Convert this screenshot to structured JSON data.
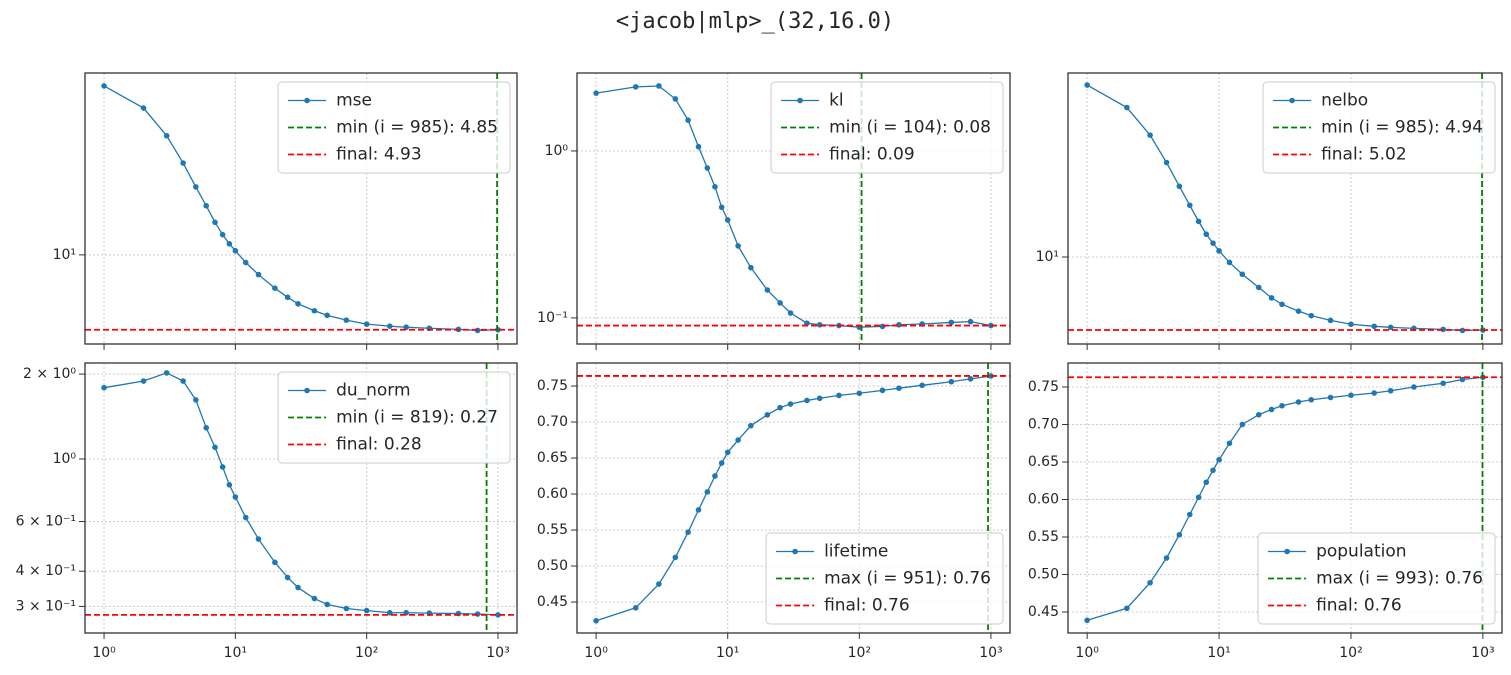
{
  "title": "<jacob|mlp>_(32,16.0)",
  "chart_data": [
    {
      "type": "line",
      "xlog": true,
      "ylog": true,
      "grid": true,
      "legend": "upper right",
      "show_xticklabels": false,
      "x": [
        1,
        2,
        3,
        4,
        5,
        6,
        7,
        8,
        9,
        10,
        12,
        15,
        20,
        25,
        30,
        40,
        50,
        70,
        100,
        150,
        200,
        300,
        500,
        700,
        1000
      ],
      "series": [
        {
          "name": "mse",
          "color": "#1f77b4",
          "values": [
            49.3,
            40,
            30.8,
            23.8,
            19,
            15.9,
            13.6,
            12.1,
            11.1,
            10.4,
            9.3,
            8.3,
            7.3,
            6.7,
            6.3,
            5.9,
            5.65,
            5.4,
            5.2,
            5.1,
            5.05,
            5.0,
            4.95,
            4.9,
            4.93
          ]
        }
      ],
      "reference_lines": [
        {
          "name": "min (i = 985): 4.85",
          "color": "#008000",
          "axis": "x",
          "value": 985
        },
        {
          "name": "final: 4.93",
          "color": "#ff0000",
          "axis": "y",
          "value": 4.93
        }
      ],
      "xlim": [
        0.716,
        1396
      ],
      "ylim": [
        4.31,
        55.7
      ],
      "xticks": [
        {
          "value": 1,
          "label": "10⁰"
        },
        {
          "value": 10,
          "label": "10¹"
        },
        {
          "value": 100,
          "label": "10²"
        },
        {
          "value": 1000,
          "label": "10³"
        }
      ],
      "yticks": [
        {
          "value": 10,
          "label": "10¹"
        }
      ]
    },
    {
      "type": "line",
      "xlog": true,
      "ylog": true,
      "grid": true,
      "legend": "upper right",
      "show_xticklabels": false,
      "x": [
        1,
        2,
        3,
        4,
        5,
        6,
        7,
        8,
        9,
        10,
        12,
        15,
        20,
        25,
        30,
        40,
        50,
        70,
        100,
        150,
        200,
        300,
        500,
        700,
        1000
      ],
      "series": [
        {
          "name": "kl",
          "color": "#1f77b4",
          "values": [
            2.22,
            2.42,
            2.45,
            2.05,
            1.53,
            1.06,
            0.79,
            0.61,
            0.46,
            0.386,
            0.27,
            0.2,
            0.147,
            0.123,
            0.107,
            0.093,
            0.091,
            0.09,
            0.088,
            0.089,
            0.091,
            0.092,
            0.094,
            0.095,
            0.09
          ]
        }
      ],
      "reference_lines": [
        {
          "name": "min (i = 104): 0.08",
          "color": "#008000",
          "axis": "x",
          "value": 104
        },
        {
          "name": "final: 0.09",
          "color": "#ff0000",
          "axis": "y",
          "value": 0.09
        }
      ],
      "xlim": [
        0.716,
        1396
      ],
      "ylim": [
        0.0698,
        2.93
      ],
      "xticks": [
        {
          "value": 1,
          "label": "10⁰"
        },
        {
          "value": 10,
          "label": "10¹"
        },
        {
          "value": 100,
          "label": "10²"
        },
        {
          "value": 1000,
          "label": "10³"
        }
      ],
      "yticks": [
        {
          "value": 0.1,
          "label": "10⁻¹"
        },
        {
          "value": 1,
          "label": "10⁰"
        }
      ]
    },
    {
      "type": "line",
      "xlog": true,
      "ylog": true,
      "grid": true,
      "legend": "upper right",
      "show_xticklabels": false,
      "x": [
        1,
        2,
        3,
        4,
        5,
        6,
        7,
        8,
        9,
        10,
        12,
        15,
        20,
        25,
        30,
        40,
        50,
        70,
        100,
        150,
        200,
        300,
        500,
        700,
        1000
      ],
      "series": [
        {
          "name": "nelbo",
          "color": "#1f77b4",
          "values": [
            50.7,
            41,
            31.6,
            24.4,
            19.5,
            16.3,
            14,
            12.4,
            11.4,
            10.6,
            9.5,
            8.5,
            7.5,
            6.8,
            6.4,
            6.0,
            5.75,
            5.5,
            5.3,
            5.2,
            5.15,
            5.1,
            5.05,
            5.0,
            5.02
          ]
        }
      ],
      "reference_lines": [
        {
          "name": "min (i = 985): 4.94",
          "color": "#008000",
          "axis": "x",
          "value": 985
        },
        {
          "name": "final: 5.02",
          "color": "#ff0000",
          "axis": "y",
          "value": 5.02
        }
      ],
      "xlim": [
        0.716,
        1396
      ],
      "ylim": [
        4.4,
        56.8
      ],
      "xticks": [
        {
          "value": 1,
          "label": "10⁰"
        },
        {
          "value": 10,
          "label": "10¹"
        },
        {
          "value": 100,
          "label": "10²"
        },
        {
          "value": 1000,
          "label": "10³"
        }
      ],
      "yticks": [
        {
          "value": 10,
          "label": "10¹"
        }
      ]
    },
    {
      "type": "line",
      "xlog": true,
      "ylog": true,
      "grid": true,
      "legend": "upper right",
      "show_xticklabels": true,
      "x": [
        1,
        2,
        3,
        4,
        5,
        6,
        7,
        8,
        9,
        10,
        12,
        15,
        20,
        25,
        30,
        40,
        50,
        70,
        100,
        150,
        200,
        300,
        500,
        700,
        1000
      ],
      "series": [
        {
          "name": "du_norm",
          "color": "#1f77b4",
          "values": [
            1.79,
            1.89,
            2.02,
            1.89,
            1.62,
            1.29,
            1.1,
            0.937,
            0.81,
            0.733,
            0.62,
            0.52,
            0.43,
            0.38,
            0.35,
            0.32,
            0.305,
            0.295,
            0.29,
            0.285,
            0.285,
            0.284,
            0.283,
            0.282,
            0.28
          ]
        }
      ],
      "reference_lines": [
        {
          "name": "min (i = 819): 0.27",
          "color": "#008000",
          "axis": "x",
          "value": 819
        },
        {
          "name": "final: 0.28",
          "color": "#ff0000",
          "axis": "y",
          "value": 0.28
        }
      ],
      "xlim": [
        0.716,
        1396
      ],
      "ylim": [
        0.2415,
        2.19
      ],
      "xticks": [
        {
          "value": 1,
          "label": "10⁰"
        },
        {
          "value": 10,
          "label": "10¹"
        },
        {
          "value": 100,
          "label": "10²"
        },
        {
          "value": 1000,
          "label": "10³"
        }
      ],
      "yticks": [
        {
          "value": 0.3,
          "label": "3 × 10⁻¹"
        },
        {
          "value": 0.4,
          "label": "4 × 10⁻¹"
        },
        {
          "value": 0.6,
          "label": "6 × 10⁻¹"
        },
        {
          "value": 1,
          "label": "10⁰"
        },
        {
          "value": 2,
          "label": "2 × 10⁰"
        }
      ]
    },
    {
      "type": "line",
      "xlog": true,
      "ylog": false,
      "grid": true,
      "legend": "lower right",
      "show_xticklabels": true,
      "x": [
        1,
        2,
        3,
        4,
        5,
        6,
        7,
        8,
        9,
        10,
        12,
        15,
        20,
        25,
        30,
        40,
        50,
        70,
        100,
        150,
        200,
        300,
        500,
        700,
        1000
      ],
      "series": [
        {
          "name": "lifetime",
          "color": "#1f77b4",
          "values": [
            0.424,
            0.442,
            0.475,
            0.512,
            0.547,
            0.578,
            0.603,
            0.625,
            0.643,
            0.658,
            0.675,
            0.695,
            0.71,
            0.72,
            0.725,
            0.73,
            0.733,
            0.737,
            0.74,
            0.744,
            0.747,
            0.751,
            0.756,
            0.76,
            0.764
          ]
        }
      ],
      "reference_lines": [
        {
          "name": "max (i = 951): 0.76",
          "color": "#008000",
          "axis": "x",
          "value": 951
        },
        {
          "name": "final: 0.76",
          "color": "#ff0000",
          "axis": "y",
          "value": 0.764
        }
      ],
      "xlim": [
        0.716,
        1396
      ],
      "ylim": [
        0.407,
        0.782
      ],
      "xticks": [
        {
          "value": 1,
          "label": "10⁰"
        },
        {
          "value": 10,
          "label": "10¹"
        },
        {
          "value": 100,
          "label": "10²"
        },
        {
          "value": 1000,
          "label": "10³"
        }
      ],
      "yticks": [
        {
          "value": 0.45,
          "label": "0.45"
        },
        {
          "value": 0.5,
          "label": "0.50"
        },
        {
          "value": 0.55,
          "label": "0.55"
        },
        {
          "value": 0.6,
          "label": "0.60"
        },
        {
          "value": 0.65,
          "label": "0.65"
        },
        {
          "value": 0.7,
          "label": "0.70"
        },
        {
          "value": 0.75,
          "label": "0.75"
        }
      ]
    },
    {
      "type": "line",
      "xlog": true,
      "ylog": false,
      "grid": true,
      "legend": "lower right",
      "show_xticklabels": true,
      "x": [
        1,
        2,
        3,
        4,
        5,
        6,
        7,
        8,
        9,
        10,
        12,
        15,
        20,
        25,
        30,
        40,
        50,
        70,
        100,
        150,
        200,
        300,
        500,
        700,
        1000
      ],
      "series": [
        {
          "name": "population",
          "color": "#1f77b4",
          "values": [
            0.439,
            0.455,
            0.489,
            0.522,
            0.553,
            0.58,
            0.603,
            0.623,
            0.639,
            0.653,
            0.675,
            0.7,
            0.713,
            0.72,
            0.725,
            0.73,
            0.733,
            0.736,
            0.739,
            0.742,
            0.745,
            0.75,
            0.755,
            0.76,
            0.763
          ]
        }
      ],
      "reference_lines": [
        {
          "name": "max (i = 993): 0.76",
          "color": "#008000",
          "axis": "x",
          "value": 993
        },
        {
          "name": "final: 0.76",
          "color": "#ff0000",
          "axis": "y",
          "value": 0.763
        }
      ],
      "xlim": [
        0.716,
        1396
      ],
      "ylim": [
        0.422,
        0.782
      ],
      "xticks": [
        {
          "value": 1,
          "label": "10⁰"
        },
        {
          "value": 10,
          "label": "10¹"
        },
        {
          "value": 100,
          "label": "10²"
        },
        {
          "value": 1000,
          "label": "10³"
        }
      ],
      "yticks": [
        {
          "value": 0.45,
          "label": "0.45"
        },
        {
          "value": 0.5,
          "label": "0.50"
        },
        {
          "value": 0.55,
          "label": "0.55"
        },
        {
          "value": 0.6,
          "label": "0.60"
        },
        {
          "value": 0.65,
          "label": "0.65"
        },
        {
          "value": 0.7,
          "label": "0.70"
        },
        {
          "value": 0.75,
          "label": "0.75"
        }
      ]
    }
  ]
}
